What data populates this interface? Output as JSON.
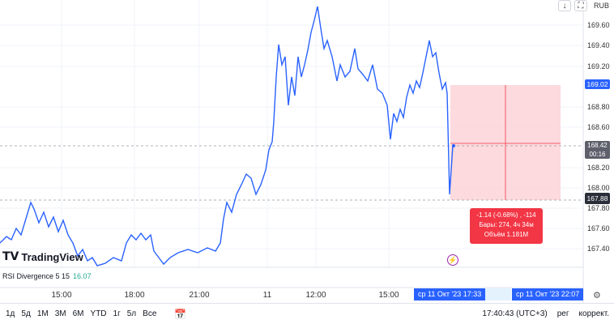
{
  "header": {
    "currency": "RUB",
    "download_icon": "arrow-down-icon",
    "fullscreen_icon": "fullscreen-icon"
  },
  "price_axis": {
    "ticks": [
      "169.60",
      "169.40",
      "169.20",
      "168.80",
      "168.60",
      "168.20",
      "168.00",
      "167.80",
      "167.60",
      "167.40"
    ],
    "last_price": "169.02",
    "cursor_price": "168.42",
    "countdown": "00:16",
    "measure_price": "167.88"
  },
  "time_axis": {
    "ticks": [
      "15:00",
      "18:00",
      "21:00",
      "11",
      "12:00",
      "15:00"
    ],
    "cursor_start": "ср 11 Окт '23   17:33",
    "cursor_end": "ср 11 Окт '23   22:07"
  },
  "measure": {
    "line1": "-1.14 (-0.68%) , -114",
    "line2": "Бары: 274, 4ч 34м",
    "line3": "Объём 1.181M"
  },
  "indicator": {
    "name": "RSI Divergence 5 15",
    "value": "16.07"
  },
  "logo": {
    "mark": "T​V",
    "text": "TradingView"
  },
  "bottom_bar": {
    "ranges": [
      "1д",
      "5д",
      "1М",
      "3М",
      "6М",
      "YTD",
      "1г",
      "5л",
      "Все"
    ],
    "clock": "17:40:43 (UTC+3)",
    "mode1": "рег",
    "mode2": "коррект."
  },
  "colors": {
    "line": "#2962ff",
    "measure_fill": "#f8c5cb",
    "measure_text_bg": "#f23645",
    "accent": "#2962ff"
  },
  "icons": {
    "calendar": "calendar-icon",
    "settings": "gear-icon",
    "event": "lightning-icon"
  }
}
